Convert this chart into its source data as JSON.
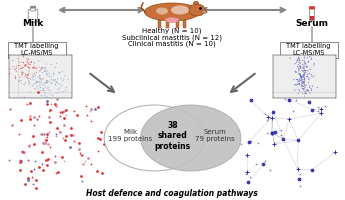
{
  "title": "Host defence and coagulation pathways",
  "milk_label": "Milk",
  "serum_label": "Serum",
  "tmt_label": "TMT labelling\nLC-MS/MS",
  "cow_labels": [
    "Healthy (N = 10)",
    "Subclinical mastitis (N = 12)",
    "Clinical mastitis (N = 10)"
  ],
  "venn_milk_label": "Milk\n199 proteins",
  "venn_serum_label": "Serum\n79 proteins",
  "venn_shared_label": "38\nshared\nproteins",
  "bg_color": "#ffffff",
  "arrow_color": "#888888",
  "scatter_left_colors": [
    "#cc5555",
    "#8888cc"
  ],
  "network_left_colors": [
    "#dd4444",
    "#cc88aa",
    "#8888cc"
  ],
  "network_right_color": "#3333aa",
  "title_fontsize": 5.5,
  "label_fontsize": 6.5,
  "small_fontsize": 4.8,
  "venn_fontsize": 5.0,
  "cow_text_fontsize": 5.0,
  "venn_left_fc": "#ffffff",
  "venn_right_fc": "#c0c0c0",
  "venn_ec": "#aaaaaa"
}
